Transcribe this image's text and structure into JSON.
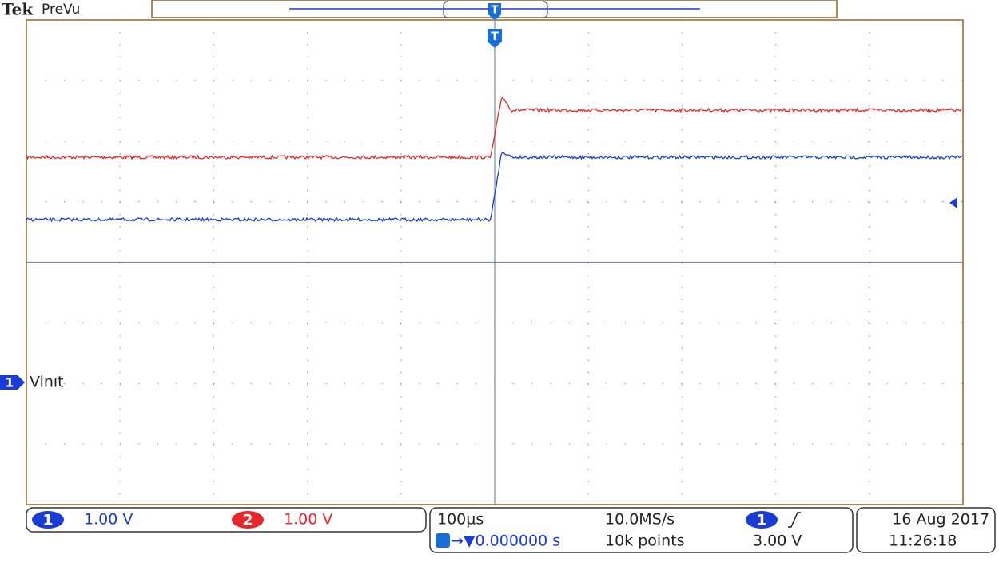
{
  "header": {
    "brand": "Tek",
    "mode": "PreVu"
  },
  "trigger_marker": "T",
  "channel_marker": {
    "number": "1",
    "label": "Vinıt"
  },
  "status": {
    "ch1": {
      "number": "1",
      "scale": "1.00 V"
    },
    "ch2": {
      "number": "2",
      "scale": "1.00 V"
    },
    "timebase": "100µs",
    "sample_rate": "10.0MS/s",
    "record_length": "10k points",
    "trigger_position": "→▼0.000000 s",
    "trigger_source": "1",
    "trigger_level": "3.00 V",
    "date": "16 Aug 2017",
    "time": "11:26:18"
  }
}
